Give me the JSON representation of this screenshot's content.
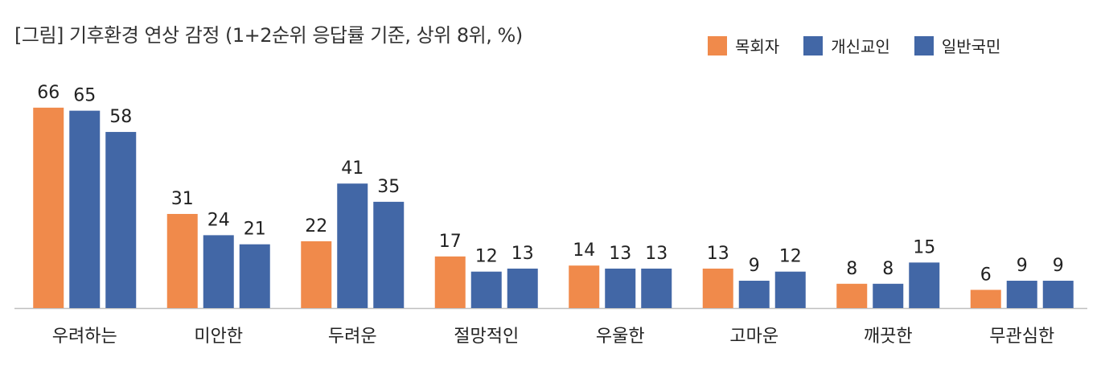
{
  "title": "[그림] 기후환경 연상 감정 (1+2순위 응답률 기준, 상위 8위, %)",
  "legend": [
    {
      "label": "목회자",
      "color": "#F08A4B"
    },
    {
      "label": "개신교인",
      "color": "#4267A6"
    },
    {
      "label": "일반국민",
      "color": "#4267A6"
    }
  ],
  "chart_data": {
    "type": "bar",
    "title": "[그림] 기후환경 연상 감정 (1+2순위 응답률 기준, 상위 8위, %)",
    "xlabel": "",
    "ylabel": "",
    "ylim": [
      0,
      70
    ],
    "grid": false,
    "legend_position": "top-right",
    "categories": [
      "우려하는",
      "미안한",
      "두려운",
      "절망적인",
      "우울한",
      "고마운",
      "깨끗한",
      "무관심한"
    ],
    "series": [
      {
        "name": "목회자",
        "color": "#F08A4B",
        "values": [
          66,
          31,
          22,
          17,
          14,
          13,
          8,
          6
        ]
      },
      {
        "name": "개신교인",
        "color": "#4267A6",
        "values": [
          65,
          24,
          41,
          12,
          13,
          9,
          8,
          9
        ]
      },
      {
        "name": "일반국민",
        "color": "#4267A6",
        "values": [
          58,
          21,
          35,
          13,
          13,
          12,
          15,
          9
        ]
      }
    ]
  }
}
